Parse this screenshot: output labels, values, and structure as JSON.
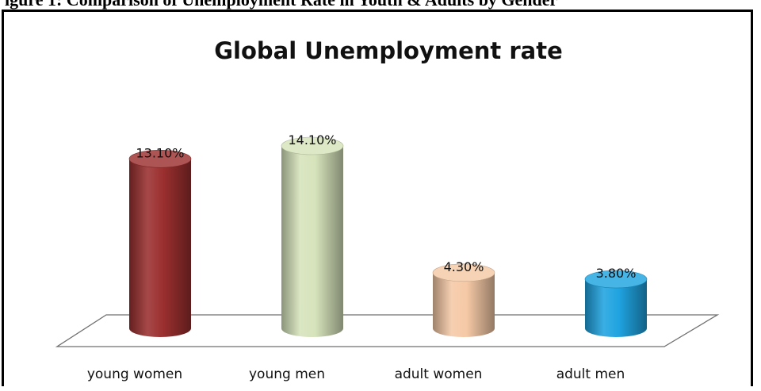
{
  "caption": "igure 1: Comparison of Unemployment Rate in Youth & Adults by Gender",
  "chart_data": {
    "type": "bar",
    "title": "Global Unemployment rate",
    "categories": [
      "young women",
      "young men",
      "adult women",
      "adult men"
    ],
    "values": [
      13.1,
      14.1,
      4.3,
      3.8
    ],
    "value_labels": [
      "13.10%",
      "14.10%",
      "4.30%",
      "3.80%"
    ],
    "colors": [
      "#9b2f2f",
      "#d6e3bb",
      "#f5c9a6",
      "#1fa3e0"
    ],
    "unit": "%",
    "grid": false,
    "legend": "none",
    "style": "3d-cylinder"
  }
}
